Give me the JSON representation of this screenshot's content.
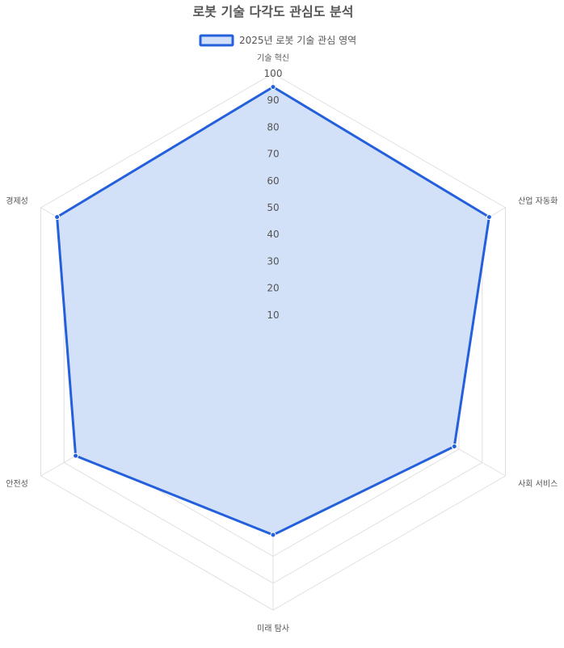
{
  "chart_data": {
    "type": "radar",
    "title": "로봇 기술 다각도 관심도 분석",
    "axes": [
      "기술 혁신",
      "산업 자동화",
      "사회 서비스",
      "미래 탐사",
      "안전성",
      "경제성"
    ],
    "series": [
      {
        "name": "2025년 로봇 기술 관심 영역",
        "values": [
          95,
          93,
          78,
          72,
          85,
          93
        ],
        "border_color": "#2460dc",
        "fill_color": "#d1dff8"
      }
    ],
    "r_range": [
      0,
      100
    ],
    "r_ticks": [
      10,
      20,
      30,
      40,
      50,
      60,
      70,
      80,
      90,
      100
    ],
    "legend_position": "top",
    "grid": true
  },
  "colors": {
    "grid": "#e0e0e0",
    "text": "#555555"
  }
}
